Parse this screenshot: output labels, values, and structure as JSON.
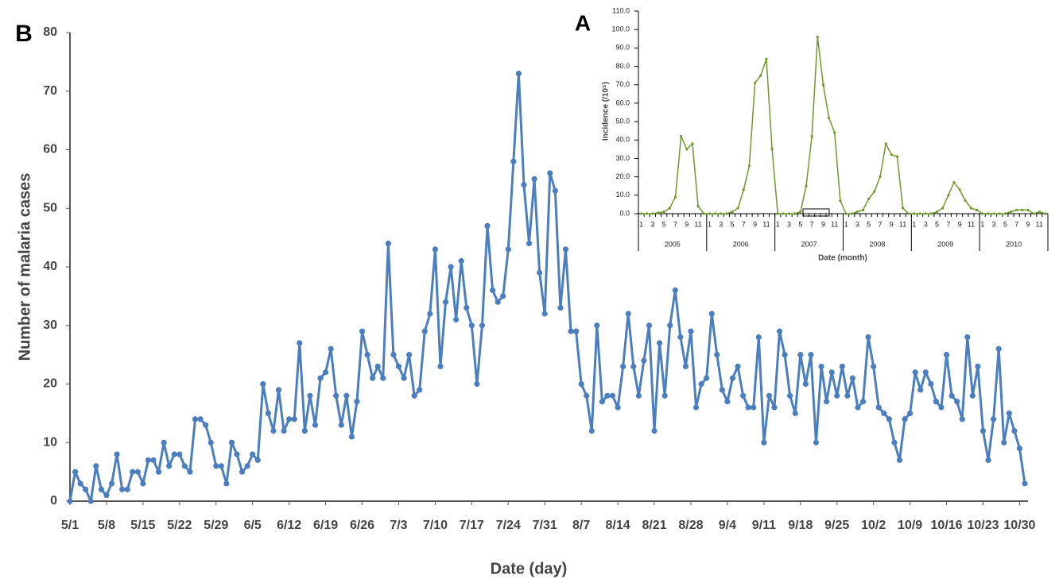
{
  "chart_data": [
    {
      "type": "line",
      "label": "B",
      "x_label": "Date (day)",
      "y_label": "Number of malaria cases",
      "color": "#4a7ebf",
      "categories": [
        "5/1",
        null,
        null,
        null,
        null,
        null,
        null,
        "5/8",
        null,
        null,
        null,
        null,
        null,
        null,
        "5/15",
        null,
        null,
        null,
        null,
        null,
        null,
        "5/22",
        null,
        null,
        null,
        null,
        null,
        null,
        "5/29",
        null,
        null,
        null,
        null,
        null,
        null,
        "6/5",
        null,
        null,
        null,
        null,
        null,
        null,
        "6/12",
        null,
        null,
        null,
        null,
        null,
        null,
        "6/19",
        null,
        null,
        null,
        null,
        null,
        null,
        "6/26",
        null,
        null,
        null,
        null,
        null,
        null,
        "7/3",
        null,
        null,
        null,
        null,
        null,
        null,
        "7/10",
        null,
        null,
        null,
        null,
        null,
        null,
        "7/17",
        null,
        null,
        null,
        null,
        null,
        null,
        "7/24",
        null,
        null,
        null,
        null,
        null,
        null,
        "7/31",
        null,
        null,
        null,
        null,
        null,
        null,
        "8/7",
        null,
        null,
        null,
        null,
        null,
        null,
        "8/14",
        null,
        null,
        null,
        null,
        null,
        null,
        "8/21",
        null,
        null,
        null,
        null,
        null,
        null,
        "8/28",
        null,
        null,
        null,
        null,
        null,
        null,
        "9/4",
        null,
        null,
        null,
        null,
        null,
        null,
        "9/11",
        null,
        null,
        null,
        null,
        null,
        null,
        "9/18",
        null,
        null,
        null,
        null,
        null,
        null,
        "9/25",
        null,
        null,
        null,
        null,
        null,
        null,
        "10/2",
        null,
        null,
        null,
        null,
        null,
        null,
        "10/9",
        null,
        null,
        null,
        null,
        null,
        null,
        "10/16",
        null,
        null,
        null,
        null,
        null,
        null,
        "10/23",
        null,
        null,
        null,
        null,
        null,
        null,
        "10/30",
        null
      ],
      "values": [
        0,
        5,
        3,
        2,
        0,
        6,
        2,
        1,
        3,
        8,
        2,
        2,
        5,
        5,
        3,
        7,
        7,
        5,
        10,
        6,
        8,
        8,
        6,
        5,
        14,
        14,
        13,
        10,
        6,
        6,
        3,
        10,
        8,
        5,
        6,
        8,
        7,
        20,
        15,
        12,
        19,
        12,
        14,
        14,
        27,
        12,
        18,
        13,
        21,
        22,
        26,
        18,
        13,
        18,
        11,
        17,
        29,
        25,
        21,
        23,
        21,
        44,
        25,
        23,
        21,
        25,
        18,
        19,
        29,
        32,
        43,
        23,
        34,
        40,
        31,
        41,
        33,
        30,
        20,
        30,
        47,
        36,
        34,
        35,
        43,
        58,
        73,
        54,
        44,
        55,
        39,
        32,
        56,
        53,
        33,
        43,
        29,
        29,
        20,
        18,
        12,
        30,
        17,
        18,
        18,
        16,
        23,
        32,
        23,
        18,
        24,
        30,
        12,
        27,
        18,
        30,
        36,
        28,
        23,
        29,
        16,
        20,
        21,
        32,
        25,
        19,
        17,
        21,
        23,
        18,
        16,
        16,
        28,
        10,
        18,
        16,
        29,
        25,
        18,
        15,
        25,
        20,
        25,
        10,
        23,
        17,
        22,
        18,
        23,
        18,
        21,
        16,
        17,
        28,
        23,
        16,
        15,
        14,
        10,
        7,
        14,
        15,
        22,
        19,
        22,
        20,
        17,
        16,
        25,
        18,
        17,
        14,
        28,
        18,
        23,
        12,
        7,
        14,
        26,
        10,
        15,
        12,
        9,
        3
      ],
      "ylim": [
        0,
        80
      ],
      "yticks": [
        0,
        10,
        20,
        30,
        40,
        50,
        60,
        70,
        80
      ]
    },
    {
      "type": "line",
      "label": "A",
      "x_label": "Date (month)",
      "y_label": "Incidence (/10⁵)",
      "color": "#6e9a2c",
      "categories": [
        "1",
        null,
        "3",
        null,
        "5",
        null,
        "7",
        null,
        "9",
        null,
        "11",
        null,
        "1",
        null,
        "3",
        null,
        "5",
        null,
        "7",
        null,
        "9",
        null,
        "11",
        null,
        "1",
        null,
        "3",
        null,
        "5",
        null,
        "7",
        null,
        "9",
        null,
        "11",
        null,
        "1",
        null,
        "3",
        null,
        "5",
        null,
        "7",
        null,
        "9",
        null,
        "11",
        null,
        "1",
        null,
        "3",
        null,
        "5",
        null,
        "7",
        null,
        "9",
        null,
        "11",
        null,
        "1",
        null,
        "3",
        null,
        "5",
        null,
        "7",
        null,
        "9",
        null,
        "11",
        null
      ],
      "groups": [
        "2005",
        "2006",
        "2007",
        "2008",
        "2009",
        "2010"
      ],
      "values": [
        0,
        0,
        0,
        0.5,
        1,
        3,
        9,
        42,
        35,
        38,
        4,
        0,
        0,
        0,
        0,
        0,
        1,
        3,
        13,
        26,
        71,
        75,
        84,
        35,
        0,
        0,
        0,
        0,
        1,
        15,
        42,
        96,
        70,
        52,
        44,
        7,
        0,
        0,
        1,
        2,
        8,
        12,
        20,
        38,
        32,
        31,
        3,
        0,
        0,
        0,
        0,
        0,
        1,
        3,
        10,
        17,
        13,
        7,
        3,
        2,
        0,
        0,
        0,
        0,
        0,
        1,
        2,
        2,
        2,
        0,
        1,
        0
      ],
      "ylim": [
        0,
        110
      ],
      "yticks": [
        {
          "value": 0,
          "label": "0.0"
        },
        {
          "value": 10,
          "label": "10.0"
        },
        {
          "value": 20,
          "label": "20.0"
        },
        {
          "value": 30,
          "label": "30.0"
        },
        {
          "value": 40,
          "label": "40.0"
        },
        {
          "value": 50,
          "label": "50.0"
        },
        {
          "value": 60,
          "label": "60.0"
        },
        {
          "value": 70,
          "label": "70.0"
        },
        {
          "value": 80,
          "label": "80.0"
        },
        {
          "value": 90,
          "label": "90.0"
        },
        {
          "value": 100,
          "label": "100.0"
        },
        {
          "value": 110,
          "label": "110.0"
        }
      ]
    }
  ]
}
